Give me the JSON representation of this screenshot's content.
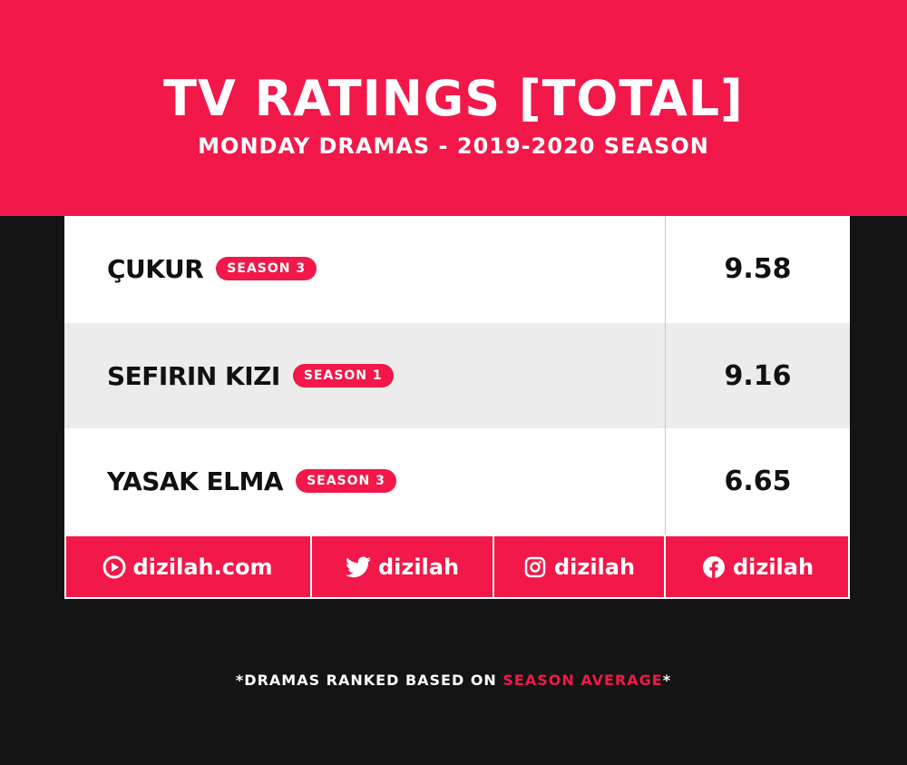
{
  "header": {
    "title": "TV RATINGS [TOTAL]",
    "subtitle": "MONDAY DRAMAS - 2019-2020 SEASON"
  },
  "chart_data": {
    "type": "table",
    "title": "TV RATINGS [TOTAL]",
    "subtitle": "MONDAY DRAMAS - 2019-2020 SEASON",
    "rows": [
      {
        "name": "ÇUKUR",
        "season": "SEASON 3",
        "rating": "9.58"
      },
      {
        "name": "SEFIRIN KIZI",
        "season": "SEASON 1",
        "rating": "9.16"
      },
      {
        "name": "YASAK ELMA",
        "season": "SEASON 3",
        "rating": "6.65"
      }
    ]
  },
  "footer": {
    "website": {
      "label": "dizilah.com",
      "icon": "dizilah-logo-icon"
    },
    "twitter": {
      "label": "dizilah",
      "icon": "twitter-icon"
    },
    "instagram": {
      "label": "dizilah",
      "icon": "instagram-icon"
    },
    "facebook": {
      "label": "dizilah",
      "icon": "facebook-icon"
    }
  },
  "note": {
    "prefix": "*DRAMAS RANKED BASED ON ",
    "highlight": "SEASON AVERAGE",
    "suffix": "*"
  },
  "colors": {
    "accent": "#f2184a",
    "background": "#141414",
    "alt_row": "#ececec"
  }
}
